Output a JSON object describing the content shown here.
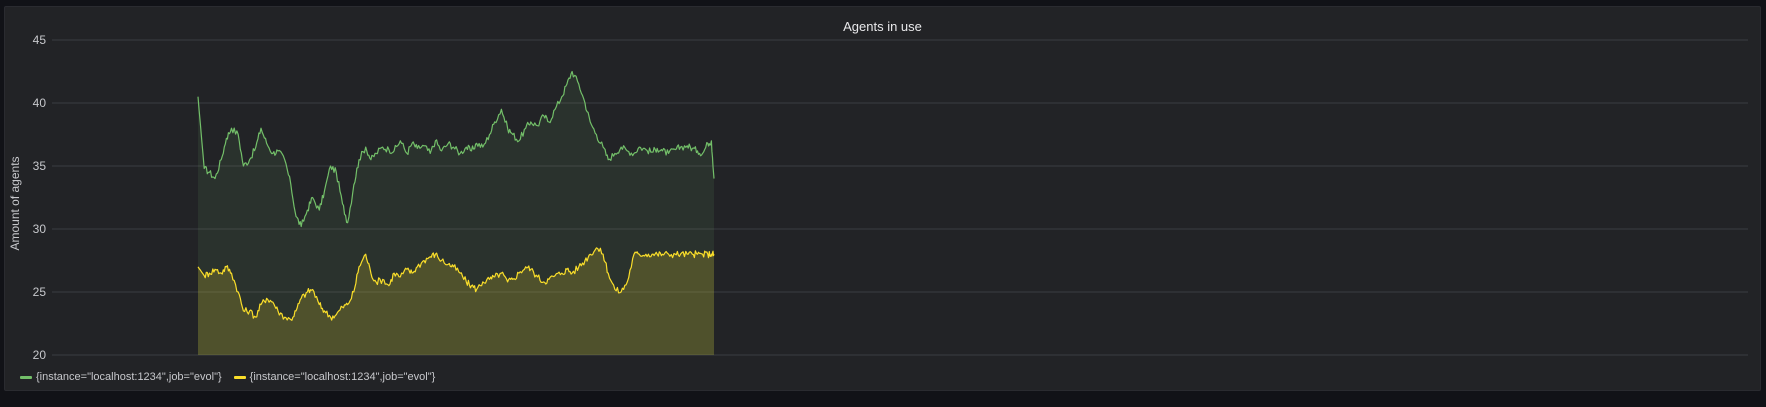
{
  "panel": {
    "title": "Agents in use"
  },
  "chart_data": {
    "type": "area",
    "title": "Agents in use",
    "ylabel": "Amount of agents",
    "ylim": [
      20,
      45
    ],
    "y_ticks": [
      20,
      25,
      30,
      35,
      40,
      45
    ],
    "grid": true,
    "legend_position": "bottom-left",
    "x_range": [
      0,
      1
    ],
    "series": [
      {
        "name": "{instance=\"localhost:1234\",job=\"evol\"}",
        "color": "#73BF69",
        "x": [
          0.0,
          0.012,
          0.022,
          0.033,
          0.045,
          0.055,
          0.065,
          0.078,
          0.088,
          0.1,
          0.112,
          0.122,
          0.133,
          0.145,
          0.155,
          0.168,
          0.18,
          0.19,
          0.2,
          0.212,
          0.222,
          0.235,
          0.245,
          0.257,
          0.268,
          0.28,
          0.29,
          0.302,
          0.312,
          0.325,
          0.335,
          0.345,
          0.358,
          0.37,
          0.38,
          0.392,
          0.405,
          0.415,
          0.425,
          0.438,
          0.45,
          0.46,
          0.472,
          0.485,
          0.495,
          0.508,
          0.52,
          0.53,
          0.54,
          0.552,
          0.565,
          0.575,
          0.588,
          0.6,
          0.61,
          0.622,
          0.635,
          0.645,
          0.658,
          0.67,
          0.68,
          0.692,
          0.705,
          0.715,
          0.725,
          0.738,
          0.75,
          0.76,
          0.772,
          0.785,
          0.795,
          0.808,
          0.82,
          0.832,
          0.845,
          0.855,
          0.868,
          0.88,
          0.89,
          0.9,
          0.912,
          0.925,
          0.935,
          0.948,
          0.958,
          0.968,
          0.978,
          0.988,
          0.995,
          1.0
        ],
        "values": [
          40.5,
          34.8,
          34.5,
          34.0,
          35.5,
          37.2,
          38.0,
          37.5,
          35.0,
          35.5,
          36.5,
          38.0,
          36.8,
          36.0,
          36.2,
          35.5,
          33.5,
          31.0,
          30.2,
          31.5,
          32.5,
          31.5,
          33.0,
          35.0,
          34.5,
          32.0,
          30.5,
          33.5,
          35.5,
          36.5,
          35.5,
          36.0,
          36.5,
          36.3,
          36.2,
          37.0,
          36.0,
          36.8,
          36.4,
          36.6,
          36.0,
          37.0,
          36.2,
          36.8,
          36.5,
          36.0,
          36.5,
          36.2,
          36.8,
          36.5,
          37.5,
          38.5,
          39.5,
          38.0,
          37.5,
          37.0,
          38.0,
          38.5,
          38.2,
          39.0,
          38.5,
          39.5,
          40.5,
          41.5,
          42.5,
          41.5,
          40.0,
          38.5,
          37.5,
          36.5,
          35.5,
          36.0,
          36.5,
          36.2,
          36.0,
          36.5,
          36.3,
          36.1,
          36.4,
          36.2,
          36.0,
          36.3,
          36.5,
          36.6,
          36.4,
          36.2,
          36.0,
          36.8,
          37.0,
          34.0
        ]
      },
      {
        "name": "{instance=\"localhost:1234\",job=\"evol\"}",
        "color": "#FADE2A",
        "x": [
          0.0,
          0.012,
          0.022,
          0.033,
          0.045,
          0.055,
          0.065,
          0.078,
          0.088,
          0.1,
          0.112,
          0.122,
          0.133,
          0.145,
          0.155,
          0.168,
          0.18,
          0.19,
          0.2,
          0.212,
          0.222,
          0.235,
          0.245,
          0.257,
          0.268,
          0.28,
          0.29,
          0.302,
          0.312,
          0.325,
          0.335,
          0.345,
          0.358,
          0.37,
          0.38,
          0.392,
          0.405,
          0.415,
          0.425,
          0.438,
          0.45,
          0.46,
          0.472,
          0.485,
          0.495,
          0.508,
          0.52,
          0.53,
          0.54,
          0.552,
          0.565,
          0.575,
          0.588,
          0.6,
          0.61,
          0.622,
          0.635,
          0.645,
          0.658,
          0.67,
          0.68,
          0.692,
          0.705,
          0.715,
          0.725,
          0.738,
          0.75,
          0.76,
          0.772,
          0.785,
          0.795,
          0.808,
          0.82,
          0.832,
          0.845,
          0.855,
          0.868,
          0.88,
          0.89,
          0.9,
          0.912,
          0.925,
          0.935,
          0.948,
          0.958,
          0.968,
          0.978,
          0.988,
          0.995,
          1.0
        ],
        "values": [
          27.0,
          26.3,
          26.5,
          26.8,
          26.5,
          27.0,
          26.5,
          25.0,
          23.5,
          23.5,
          23.0,
          24.0,
          24.5,
          24.2,
          23.5,
          23.0,
          22.8,
          23.5,
          24.5,
          25.0,
          25.2,
          24.0,
          23.5,
          23.0,
          23.2,
          23.8,
          24.0,
          25.0,
          27.0,
          28.0,
          26.5,
          25.8,
          26.0,
          25.5,
          26.5,
          26.2,
          26.8,
          26.5,
          27.0,
          27.5,
          27.8,
          28.0,
          27.5,
          27.2,
          27.0,
          26.5,
          25.8,
          25.5,
          25.2,
          25.8,
          26.0,
          26.2,
          26.5,
          25.8,
          26.0,
          26.5,
          27.0,
          26.8,
          26.2,
          25.8,
          26.0,
          26.3,
          26.5,
          26.8,
          26.5,
          27.0,
          27.5,
          28.0,
          28.5,
          28.0,
          26.5,
          25.2,
          25.0,
          25.8,
          28.0,
          28.0,
          28.0,
          28.0,
          28.0,
          28.0,
          28.0,
          28.0,
          28.0,
          28.0,
          28.0,
          28.0,
          28.0,
          28.0,
          28.0,
          28.0
        ]
      }
    ]
  }
}
